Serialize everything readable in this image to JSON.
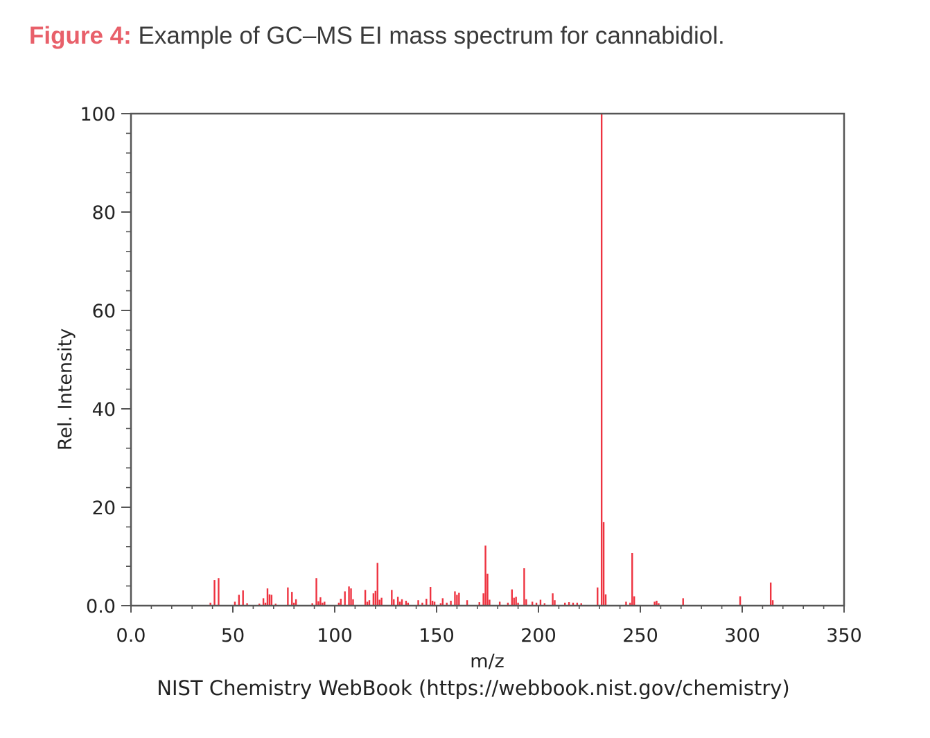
{
  "caption": {
    "label": "Figure 4:",
    "text": "Example of GC–MS EI mass spectrum for cannabidiol."
  },
  "source_note": "NIST Chemistry WebBook (https://webbook.nist.gov/chemistry)",
  "colors": {
    "peak": "#ee3340",
    "axis": "#555555",
    "caption_label": "#e8606a"
  },
  "chart_data": {
    "type": "bar",
    "xlabel": "m/z",
    "ylabel": "Rel. Intensity",
    "xlim": [
      0,
      350
    ],
    "ylim": [
      0,
      100
    ],
    "xticks": [
      "0.0",
      "50",
      "100",
      "150",
      "200",
      "250",
      "300",
      "350"
    ],
    "yticks": [
      "0.0",
      "20",
      "40",
      "60",
      "80",
      "100"
    ],
    "grid": false,
    "peaks": [
      {
        "mz": 39,
        "i": 0.6
      },
      {
        "mz": 41,
        "i": 5.2
      },
      {
        "mz": 43,
        "i": 5.6
      },
      {
        "mz": 51,
        "i": 0.8
      },
      {
        "mz": 53,
        "i": 2.2
      },
      {
        "mz": 55,
        "i": 3.1
      },
      {
        "mz": 57,
        "i": 0.5
      },
      {
        "mz": 63,
        "i": 0.4
      },
      {
        "mz": 65,
        "i": 1.5
      },
      {
        "mz": 66,
        "i": 0.6
      },
      {
        "mz": 67,
        "i": 3.5
      },
      {
        "mz": 68,
        "i": 2.3
      },
      {
        "mz": 69,
        "i": 2.2
      },
      {
        "mz": 71,
        "i": 0.4
      },
      {
        "mz": 77,
        "i": 3.7
      },
      {
        "mz": 79,
        "i": 2.8
      },
      {
        "mz": 80,
        "i": 0.6
      },
      {
        "mz": 81,
        "i": 1.3
      },
      {
        "mz": 89,
        "i": 0.5
      },
      {
        "mz": 91,
        "i": 5.6
      },
      {
        "mz": 92,
        "i": 0.9
      },
      {
        "mz": 93,
        "i": 1.7
      },
      {
        "mz": 94,
        "i": 0.6
      },
      {
        "mz": 95,
        "i": 0.8
      },
      {
        "mz": 102,
        "i": 0.6
      },
      {
        "mz": 103,
        "i": 1.4
      },
      {
        "mz": 105,
        "i": 2.9
      },
      {
        "mz": 107,
        "i": 3.9
      },
      {
        "mz": 108,
        "i": 3.5
      },
      {
        "mz": 109,
        "i": 1.3
      },
      {
        "mz": 115,
        "i": 3.2
      },
      {
        "mz": 116,
        "i": 0.8
      },
      {
        "mz": 117,
        "i": 1.1
      },
      {
        "mz": 119,
        "i": 2.5
      },
      {
        "mz": 120,
        "i": 3.0
      },
      {
        "mz": 121,
        "i": 8.7
      },
      {
        "mz": 122,
        "i": 1.2
      },
      {
        "mz": 123,
        "i": 1.6
      },
      {
        "mz": 128,
        "i": 3.2
      },
      {
        "mz": 129,
        "i": 1.3
      },
      {
        "mz": 131,
        "i": 1.8
      },
      {
        "mz": 132,
        "i": 0.8
      },
      {
        "mz": 133,
        "i": 1.3
      },
      {
        "mz": 135,
        "i": 1.0
      },
      {
        "mz": 136,
        "i": 0.6
      },
      {
        "mz": 141,
        "i": 1.1
      },
      {
        "mz": 143,
        "i": 0.6
      },
      {
        "mz": 145,
        "i": 1.4
      },
      {
        "mz": 147,
        "i": 3.8
      },
      {
        "mz": 148,
        "i": 1.0
      },
      {
        "mz": 149,
        "i": 0.8
      },
      {
        "mz": 152,
        "i": 0.5
      },
      {
        "mz": 153,
        "i": 1.5
      },
      {
        "mz": 155,
        "i": 0.6
      },
      {
        "mz": 157,
        "i": 1.0
      },
      {
        "mz": 159,
        "i": 2.9
      },
      {
        "mz": 160,
        "i": 2.2
      },
      {
        "mz": 161,
        "i": 2.6
      },
      {
        "mz": 165,
        "i": 1.1
      },
      {
        "mz": 171,
        "i": 0.7
      },
      {
        "mz": 173,
        "i": 2.5
      },
      {
        "mz": 174,
        "i": 12.2
      },
      {
        "mz": 175,
        "i": 6.5
      },
      {
        "mz": 176,
        "i": 1.2
      },
      {
        "mz": 181,
        "i": 0.8
      },
      {
        "mz": 185,
        "i": 0.6
      },
      {
        "mz": 187,
        "i": 3.3
      },
      {
        "mz": 188,
        "i": 1.6
      },
      {
        "mz": 189,
        "i": 1.8
      },
      {
        "mz": 190,
        "i": 0.6
      },
      {
        "mz": 193,
        "i": 7.6
      },
      {
        "mz": 194,
        "i": 1.3
      },
      {
        "mz": 197,
        "i": 0.8
      },
      {
        "mz": 199,
        "i": 0.6
      },
      {
        "mz": 201,
        "i": 1.2
      },
      {
        "mz": 203,
        "i": 0.5
      },
      {
        "mz": 207,
        "i": 2.5
      },
      {
        "mz": 208,
        "i": 1.1
      },
      {
        "mz": 213,
        "i": 0.6
      },
      {
        "mz": 215,
        "i": 0.7
      },
      {
        "mz": 217,
        "i": 0.6
      },
      {
        "mz": 219,
        "i": 0.6
      },
      {
        "mz": 221,
        "i": 0.5
      },
      {
        "mz": 229,
        "i": 3.7
      },
      {
        "mz": 231,
        "i": 100
      },
      {
        "mz": 232,
        "i": 17.0
      },
      {
        "mz": 233,
        "i": 2.3
      },
      {
        "mz": 243,
        "i": 0.8
      },
      {
        "mz": 245,
        "i": 0.6
      },
      {
        "mz": 246,
        "i": 10.7
      },
      {
        "mz": 247,
        "i": 1.9
      },
      {
        "mz": 257,
        "i": 0.8
      },
      {
        "mz": 258,
        "i": 1.0
      },
      {
        "mz": 259,
        "i": 0.5
      },
      {
        "mz": 271,
        "i": 1.5
      },
      {
        "mz": 299,
        "i": 1.9
      },
      {
        "mz": 314,
        "i": 4.7
      },
      {
        "mz": 315,
        "i": 1.1
      }
    ]
  }
}
